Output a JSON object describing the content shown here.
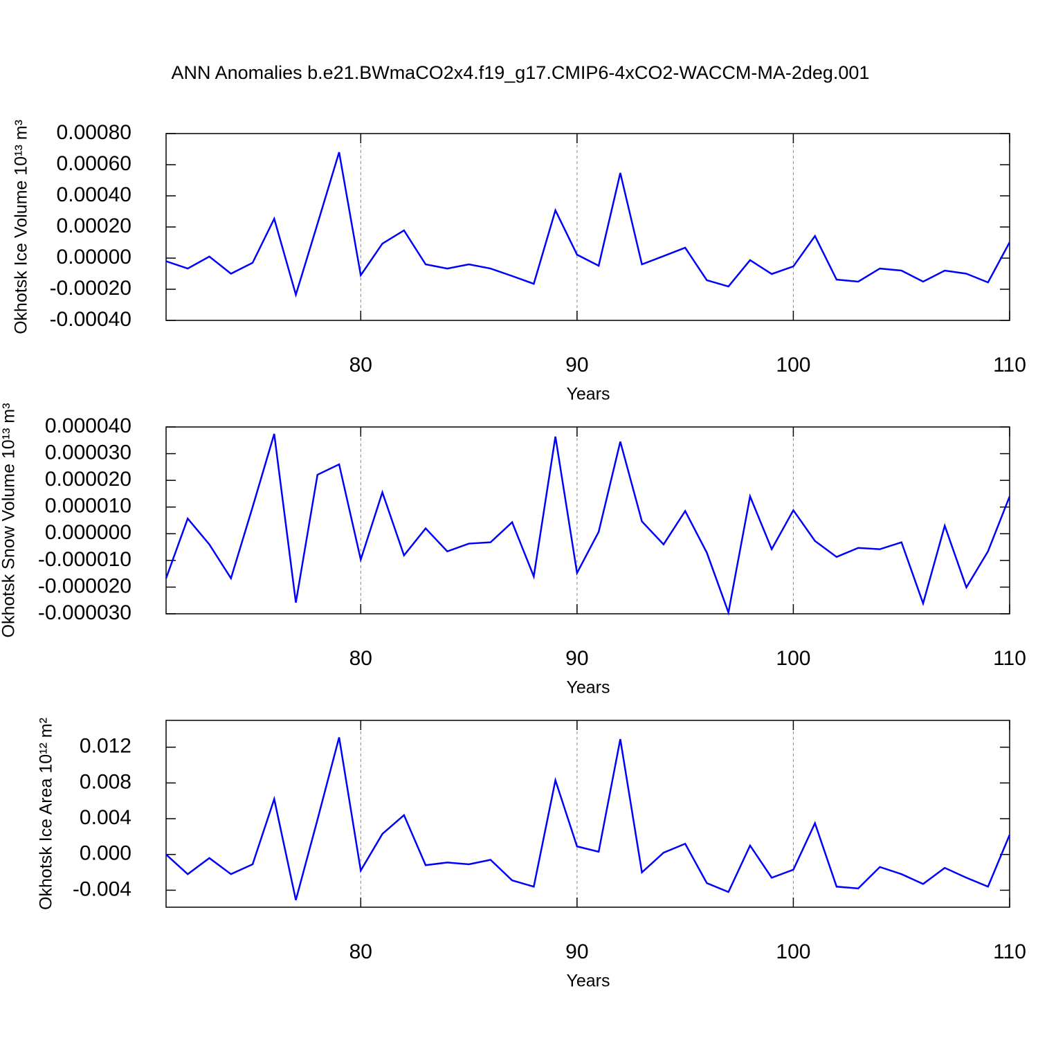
{
  "title": "ANN Anomalies b.e21.BWmaCO2x4.f19_g17.CMIP6-4xCO2-WACCM-MA-2deg.001",
  "chart_data": [
    {
      "type": "line",
      "xlabel": "Years",
      "ylabel": "Okhotsk Ice Volume 10¹³ m³",
      "color": "#0000ff",
      "grid": true,
      "x": [
        71,
        72,
        73,
        74,
        75,
        76,
        77,
        78,
        79,
        80,
        81,
        82,
        83,
        84,
        85,
        86,
        87,
        88,
        89,
        90,
        91,
        92,
        93,
        94,
        95,
        96,
        97,
        98,
        99,
        100,
        101,
        102,
        103,
        104,
        105,
        106,
        107,
        108,
        109,
        110
      ],
      "values": [
        -2e-05,
        -6.7e-05,
        1e-05,
        -0.0001,
        -3e-05,
        0.000253,
        -0.000235,
        0.00022,
        0.00068,
        -0.00011,
        9.3e-05,
        0.000178,
        -4e-05,
        -6.7e-05,
        -4e-05,
        -6.7e-05,
        -0.000115,
        -0.000165,
        0.000307,
        2.2e-05,
        -4.9e-05,
        0.000547,
        -4e-05,
        1.3e-05,
        6.7e-05,
        -0.000142,
        -0.000182,
        -1.3e-05,
        -0.000102,
        -5.3e-05,
        0.000142,
        -0.000138,
        -0.000151,
        -6.7e-05,
        -8e-05,
        -0.000151,
        -8e-05,
        -0.0001,
        -0.000156,
        0.000102
      ],
      "xlim": [
        71,
        110
      ],
      "xticks": [
        80,
        90,
        100,
        110
      ],
      "ylim": [
        -0.0004,
        0.0008
      ],
      "yticks": [
        {
          "value": 0.0008,
          "label": "0.00080"
        },
        {
          "value": 0.0006,
          "label": "0.00060"
        },
        {
          "value": 0.0004,
          "label": "0.00040"
        },
        {
          "value": 0.0002,
          "label": "0.00020"
        },
        {
          "value": 0,
          "label": "0.00000"
        },
        {
          "value": -0.0002,
          "label": "-0.00020"
        },
        {
          "value": -0.0004,
          "label": "-0.00040"
        }
      ]
    },
    {
      "type": "line",
      "xlabel": "Years",
      "ylabel": "Okhotsk Snow Volume 10¹³ m³",
      "color": "#0000ff",
      "grid": true,
      "x": [
        71,
        72,
        73,
        74,
        75,
        76,
        77,
        78,
        79,
        80,
        81,
        82,
        83,
        84,
        85,
        86,
        87,
        88,
        89,
        90,
        91,
        92,
        93,
        94,
        95,
        96,
        97,
        98,
        99,
        100,
        101,
        102,
        103,
        104,
        105,
        106,
        107,
        108,
        109,
        110
      ],
      "values": [
        -1.67e-05,
        5.7e-06,
        -4e-06,
        -1.67e-05,
        1e-05,
        3.74e-05,
        -2.58e-05,
        2.21e-05,
        2.6e-05,
        -9.7e-06,
        1.55e-05,
        -8.1e-06,
        2e-06,
        -6.6e-06,
        -3.7e-06,
        -3.2e-06,
        4.3e-06,
        -1.6e-05,
        3.64e-05,
        -1.47e-05,
        7e-07,
        3.45e-05,
        4.6e-06,
        -4e-06,
        8.5e-06,
        -7.1e-06,
        -2.95e-05,
        1.4e-05,
        -5.8e-06,
        8.8e-06,
        -2.7e-06,
        -8.7e-06,
        -5.3e-06,
        -5.8e-06,
        -3.2e-06,
        -2.61e-05,
        3e-06,
        -2.01e-05,
        -6.6e-06,
        1.4e-05
      ],
      "xlim": [
        71,
        110
      ],
      "xticks": [
        80,
        90,
        100,
        110
      ],
      "ylim": [
        -3e-05,
        4e-05
      ],
      "yticks": [
        {
          "value": 4e-05,
          "label": "0.000040"
        },
        {
          "value": 3e-05,
          "label": "0.000030"
        },
        {
          "value": 2e-05,
          "label": "0.000020"
        },
        {
          "value": 1e-05,
          "label": "0.000010"
        },
        {
          "value": 0,
          "label": "0.000000"
        },
        {
          "value": -1e-05,
          "label": "-0.000010"
        },
        {
          "value": -2e-05,
          "label": "-0.000020"
        },
        {
          "value": -3e-05,
          "label": "-0.000030"
        }
      ]
    },
    {
      "type": "line",
      "xlabel": "Years",
      "ylabel": "Okhotsk Ice Area 10¹² m²",
      "color": "#0000ff",
      "grid": true,
      "x": [
        71,
        72,
        73,
        74,
        75,
        76,
        77,
        78,
        79,
        80,
        81,
        82,
        83,
        84,
        85,
        86,
        87,
        88,
        89,
        90,
        91,
        92,
        93,
        94,
        95,
        96,
        97,
        98,
        99,
        100,
        101,
        102,
        103,
        104,
        105,
        106,
        107,
        108,
        109,
        110
      ],
      "values": [
        0,
        -0.0022,
        -0.0004,
        -0.0022,
        -0.0011,
        0.0062,
        -0.0051,
        0.0039,
        0.0131,
        -0.0018,
        0.0023,
        0.0044,
        -0.0012,
        -0.0009,
        -0.0011,
        -0.0006,
        -0.0029,
        -0.0036,
        0.0083,
        0.0009,
        0.0003,
        0.0129,
        -0.002,
        0.0002,
        0.0012,
        -0.0032,
        -0.0042,
        0.001,
        -0.0026,
        -0.0017,
        0.0035,
        -0.0036,
        -0.0038,
        -0.0014,
        -0.0022,
        -0.0033,
        -0.0015,
        -0.0026,
        -0.0036,
        0.0022
      ],
      "xlim": [
        71,
        110
      ],
      "xticks": [
        80,
        90,
        100,
        110
      ],
      "ylim": [
        -0.0059,
        0.015
      ],
      "yticks": [
        {
          "value": 0.012,
          "label": "0.012"
        },
        {
          "value": 0.008,
          "label": "0.008"
        },
        {
          "value": 0.004,
          "label": "0.004"
        },
        {
          "value": 0,
          "label": "0.000"
        },
        {
          "value": -0.004,
          "label": "-0.004"
        }
      ]
    }
  ]
}
